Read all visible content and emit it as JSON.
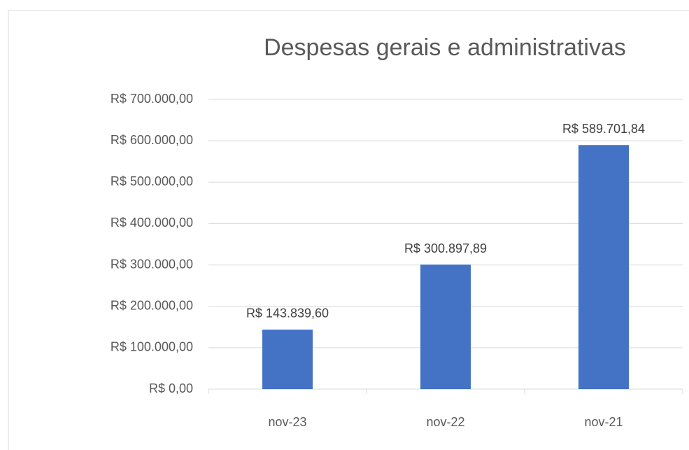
{
  "chart_data": {
    "type": "bar",
    "title": "Despesas gerais e administrativas",
    "categories": [
      "nov-23",
      "nov-22",
      "nov-21"
    ],
    "values": [
      143839.6,
      300897.89,
      589701.84
    ],
    "value_labels": [
      "R$ 143.839,60",
      "R$ 300.897,89",
      "R$ 589.701,84"
    ],
    "color": "#4472c4",
    "ylim": [
      0,
      700000
    ],
    "yticks": [
      {
        "value": 0,
        "label": "R$ 0,00"
      },
      {
        "value": 100000,
        "label": "R$ 100.000,00"
      },
      {
        "value": 200000,
        "label": "R$ 200.000,00"
      },
      {
        "value": 300000,
        "label": "R$ 300.000,00"
      },
      {
        "value": 400000,
        "label": "R$ 400.000,00"
      },
      {
        "value": 500000,
        "label": "R$ 500.000,00"
      },
      {
        "value": 600000,
        "label": "R$ 600.000,00"
      },
      {
        "value": 700000,
        "label": "R$ 700.000,00"
      }
    ],
    "grid": true
  }
}
